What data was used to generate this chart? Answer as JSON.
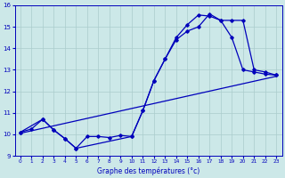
{
  "title": "Graphe des températures (°c)",
  "bg_color": "#cce8e8",
  "grid_color": "#aacccc",
  "line_color": "#0000bb",
  "xlim": [
    -0.5,
    23.5
  ],
  "ylim": [
    9,
    16
  ],
  "xticks": [
    0,
    1,
    2,
    3,
    4,
    5,
    6,
    7,
    8,
    9,
    10,
    11,
    12,
    13,
    14,
    15,
    16,
    17,
    18,
    19,
    20,
    21,
    22,
    23
  ],
  "yticks": [
    9,
    10,
    11,
    12,
    13,
    14,
    15,
    16
  ],
  "line1_x": [
    0,
    1,
    2,
    3,
    4,
    5,
    6,
    7,
    8,
    9,
    10,
    11,
    12,
    13,
    14,
    15,
    16,
    17,
    18,
    19,
    20,
    21,
    22,
    23
  ],
  "line1_y": [
    10.1,
    10.25,
    10.7,
    10.2,
    9.8,
    9.35,
    9.9,
    9.9,
    9.85,
    9.95,
    9.9,
    11.1,
    12.5,
    13.5,
    14.4,
    14.8,
    15.0,
    15.6,
    15.3,
    14.5,
    13.0,
    12.9,
    12.8,
    12.75
  ],
  "line2_x": [
    0,
    2,
    3,
    4,
    5,
    10,
    11,
    12,
    13,
    14,
    15,
    16,
    17,
    18,
    19,
    20,
    21,
    22,
    23
  ],
  "line2_y": [
    10.1,
    10.7,
    10.2,
    9.8,
    9.35,
    9.9,
    11.1,
    12.5,
    13.5,
    14.5,
    15.1,
    15.55,
    15.5,
    15.3,
    15.3,
    15.3,
    13.0,
    12.9,
    12.75
  ],
  "line3_x": [
    0,
    23
  ],
  "line3_y": [
    10.05,
    12.7
  ]
}
